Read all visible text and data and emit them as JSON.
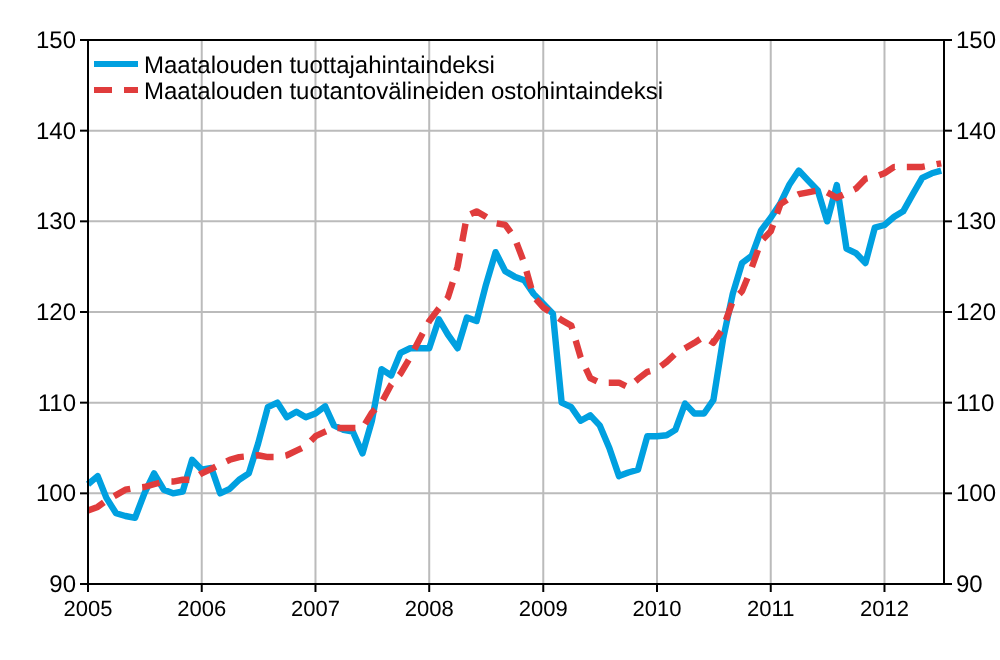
{
  "chart_data": {
    "type": "line",
    "x": [
      "2005-01",
      "2005-02",
      "2005-03",
      "2005-04",
      "2005-05",
      "2005-06",
      "2005-07",
      "2005-08",
      "2005-09",
      "2005-10",
      "2005-11",
      "2005-12",
      "2006-01",
      "2006-02",
      "2006-03",
      "2006-04",
      "2006-05",
      "2006-06",
      "2006-07",
      "2006-08",
      "2006-09",
      "2006-10",
      "2006-11",
      "2006-12",
      "2007-01",
      "2007-02",
      "2007-03",
      "2007-04",
      "2007-05",
      "2007-06",
      "2007-07",
      "2007-08",
      "2007-09",
      "2007-10",
      "2007-11",
      "2007-12",
      "2008-01",
      "2008-02",
      "2008-03",
      "2008-04",
      "2008-05",
      "2008-06",
      "2008-07",
      "2008-08",
      "2008-09",
      "2008-10",
      "2008-11",
      "2008-12",
      "2009-01",
      "2009-02",
      "2009-03",
      "2009-04",
      "2009-05",
      "2009-06",
      "2009-07",
      "2009-08",
      "2009-09",
      "2009-10",
      "2009-11",
      "2009-12",
      "2010-01",
      "2010-02",
      "2010-03",
      "2010-04",
      "2010-05",
      "2010-06",
      "2010-07",
      "2010-08",
      "2010-09",
      "2010-10",
      "2010-11",
      "2010-12",
      "2011-01",
      "2011-02",
      "2011-03",
      "2011-04",
      "2011-05",
      "2011-06",
      "2011-07",
      "2011-08",
      "2011-09",
      "2011-10",
      "2011-11",
      "2011-12",
      "2012-01",
      "2012-02",
      "2012-03",
      "2012-04",
      "2012-05",
      "2012-06",
      "2012-07"
    ],
    "series": [
      {
        "name": "Maatalouden tuottajahintaindeksi",
        "color": "#00a0e0",
        "line_style": "solid",
        "values": [
          101,
          101.9,
          99.5,
          97.8,
          97.5,
          97.3,
          100,
          102.2,
          100.4,
          100,
          100.2,
          103.7,
          102.6,
          102.8,
          100,
          100.5,
          101.5,
          102.2,
          105.5,
          109.5,
          110,
          108.4,
          109,
          108.4,
          108.8,
          109.6,
          107.5,
          107,
          106.8,
          104.4,
          108,
          113.7,
          113,
          115.5,
          116,
          116,
          116,
          119.2,
          117.5,
          116,
          119.4,
          119,
          123,
          126.6,
          124.5,
          123.9,
          123.5,
          122,
          120.9,
          119.8,
          110,
          109.5,
          108,
          108.6,
          107.5,
          105,
          101.9,
          102.3,
          102.6,
          106.3,
          106.3,
          106.4,
          107,
          109.9,
          108.8,
          108.8,
          110.3,
          117,
          122,
          125.4,
          126.2,
          129,
          130.4,
          132,
          134,
          135.6,
          134.5,
          133.4,
          130,
          134,
          127,
          126.5,
          125.4,
          129.3,
          129.6,
          130.5,
          131.1,
          133,
          134.8,
          135.3,
          135.6
        ]
      },
      {
        "name": "Maatalouden tuotantovälineiden ostohintaindeksi",
        "color": "#e03c3c",
        "line_style": "dashed",
        "values": [
          98.1,
          98.5,
          99.2,
          99.8,
          100.4,
          100.6,
          100.7,
          101,
          101.3,
          101.3,
          101.5,
          101.5,
          102.2,
          102.7,
          103.2,
          103.7,
          104,
          104.1,
          104.2,
          104,
          104,
          104.2,
          104.7,
          105.2,
          106.3,
          106.8,
          107.2,
          107.2,
          107.2,
          107.2,
          108.9,
          110,
          112,
          113.2,
          115,
          117,
          119,
          120.4,
          121.6,
          125,
          130.6,
          131.1,
          130.5,
          129.8,
          129.6,
          128.2,
          125.4,
          121.7,
          120.5,
          119.8,
          119.1,
          118.5,
          115,
          112.7,
          112.2,
          112.2,
          112.2,
          111.7,
          112.6,
          113.4,
          113.7,
          114.5,
          115.4,
          116,
          116.6,
          117.3,
          116.6,
          118.2,
          121.2,
          122.3,
          124.9,
          127.8,
          128.9,
          131.9,
          132.5,
          133,
          133.2,
          133.4,
          133.2,
          132.6,
          133.1,
          133.6,
          134.7,
          134.9,
          135.3,
          136,
          136,
          136,
          136,
          136.2,
          136.4
        ]
      }
    ],
    "xlim": [
      "2005-01",
      "2012-07-10"
    ],
    "xticks": [
      "2005",
      "2006",
      "2007",
      "2008",
      "2009",
      "2010",
      "2011",
      "2012"
    ],
    "ylim": [
      90,
      150
    ],
    "yticks": [
      90,
      100,
      110,
      120,
      130,
      140,
      150
    ],
    "y2lim": [
      90,
      150
    ],
    "y2ticks": [
      90,
      100,
      110,
      120,
      130,
      140,
      150
    ],
    "grid": true,
    "legend": "top left"
  }
}
